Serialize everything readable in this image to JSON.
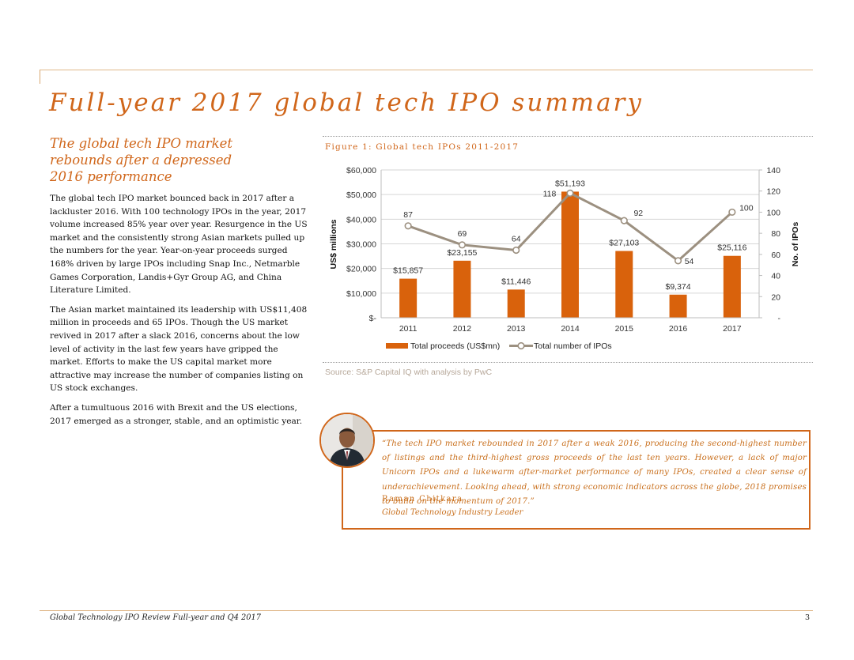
{
  "page": {
    "title": "Full-year 2017 global tech IPO summary",
    "subtitle": "The global tech IPO market rebounds after a depressed 2016 performance",
    "paragraphs": [
      "The global tech IPO market bounced back in 2017 after a lackluster 2016. With 100 technology IPOs in the year, 2017 volume increased 85% year over year. Resurgence in the US market and the consistently strong Asian markets pulled up the numbers for the year. Year-on-year proceeds surged 168% driven by large IPOs including Snap Inc., Netmarble Games Corporation, Landis+Gyr Group AG, and China Literature Limited.",
      "The Asian market maintained its leadership with US$11,408 million in proceeds and 65 IPOs. Though the US market revived in 2017 after a slack 2016, concerns about the low level of activity in the last few years have gripped the market. Efforts to make the US capital market more attractive may increase the number of companies listing on US stock exchanges.",
      "After a tumultuous 2016 with Brexit and the US elections, 2017 emerged as a stronger, stable, and an optimistic year."
    ],
    "figure_caption": "Figure 1: Global tech IPOs 2011-2017",
    "source": "Source: S&P Capital IQ with analysis by PwC",
    "quote": {
      "text": "“The tech IPO market rebounded in 2017 after a weak 2016, producing the second-highest number of listings and the third-highest gross proceeds of the last ten years. However, a lack of major Unicorn IPOs and a lukewarm after-market performance of many IPOs, created a clear sense of underachievement. Looking ahead, with strong economic indicators across the globe, 2018 promises to build on the momentum of 2017.”",
      "author": "Raman Chitkara",
      "role": "Global Technology Industry Leader"
    },
    "footer": "Global Technology IPO Review Full-year and Q4 2017",
    "page_number": "3"
  },
  "colors": {
    "accent": "#d0661a",
    "bar": "#d9620c",
    "line": "#9c9080",
    "grid": "#d6d6d6"
  },
  "chart_data": {
    "type": "bar",
    "categories": [
      "2011",
      "2012",
      "2013",
      "2014",
      "2015",
      "2016",
      "2017"
    ],
    "series": [
      {
        "name": "Total proceeds (US$mn)",
        "type": "bar",
        "axis": "left",
        "values": [
          15857,
          23155,
          11446,
          51193,
          27103,
          9374,
          25116
        ],
        "labels": [
          "$15,857",
          "$23,155",
          "$11,446",
          "$51,193",
          "$27,103",
          "$9,374",
          "$25,116"
        ]
      },
      {
        "name": "Total number of IPOs",
        "type": "line",
        "axis": "right",
        "values": [
          87,
          69,
          64,
          118,
          92,
          54,
          100
        ],
        "labels": [
          "87",
          "69",
          "64",
          "118",
          "92",
          "54",
          "100"
        ]
      }
    ],
    "ylabel": "US$ millions",
    "y2label": "No. of IPOs",
    "ylim": [
      0,
      60000
    ],
    "y2lim": [
      0,
      140
    ],
    "yticks": [
      "$-",
      "$10,000",
      "$20,000",
      "$30,000",
      "$40,000",
      "$50,000",
      "$60,000"
    ],
    "y2ticks": [
      "-",
      "20",
      "40",
      "60",
      "80",
      "100",
      "120",
      "140"
    ],
    "grid": true,
    "legend_position": "bottom-left"
  }
}
